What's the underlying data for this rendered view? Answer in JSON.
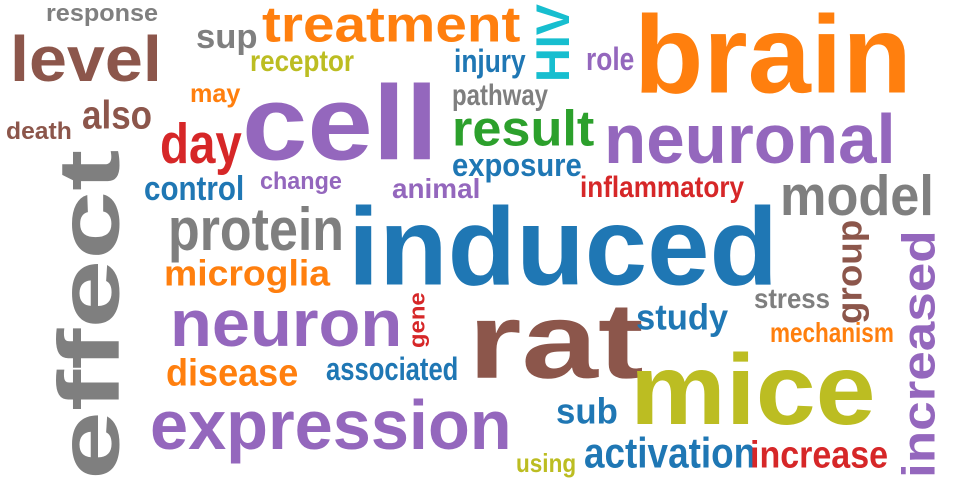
{
  "colors": {
    "gray": "#7f7f7f",
    "brown": "#8c564b",
    "orange": "#ff7f0e",
    "olive": "#bcbd22",
    "purple": "#9467bd",
    "blue": "#1f77b4",
    "green": "#2ca02c",
    "red": "#d62728",
    "cyan": "#17becf"
  },
  "words": [
    {
      "text": "response",
      "color": "gray",
      "rotated": false
    },
    {
      "text": "level",
      "color": "brown",
      "rotated": false
    },
    {
      "text": "sup",
      "color": "gray",
      "rotated": false
    },
    {
      "text": "treatment",
      "color": "orange",
      "rotated": false
    },
    {
      "text": "HIV",
      "color": "cyan",
      "rotated": true
    },
    {
      "text": "brain",
      "color": "orange",
      "rotated": false
    },
    {
      "text": "receptor",
      "color": "olive",
      "rotated": false
    },
    {
      "text": "injury",
      "color": "blue",
      "rotated": false
    },
    {
      "text": "role",
      "color": "purple",
      "rotated": false
    },
    {
      "text": "may",
      "color": "orange",
      "rotated": false
    },
    {
      "text": "cell",
      "color": "purple",
      "rotated": false
    },
    {
      "text": "pathway",
      "color": "gray",
      "rotated": false
    },
    {
      "text": "also",
      "color": "brown",
      "rotated": false
    },
    {
      "text": "death",
      "color": "brown",
      "rotated": false
    },
    {
      "text": "day",
      "color": "red",
      "rotated": false
    },
    {
      "text": "result",
      "color": "green",
      "rotated": false
    },
    {
      "text": "neuronal",
      "color": "purple",
      "rotated": false
    },
    {
      "text": "exposure",
      "color": "blue",
      "rotated": false
    },
    {
      "text": "effect",
      "color": "gray",
      "rotated": true
    },
    {
      "text": "control",
      "color": "blue",
      "rotated": false
    },
    {
      "text": "change",
      "color": "purple",
      "rotated": false
    },
    {
      "text": "animal",
      "color": "purple",
      "rotated": false
    },
    {
      "text": "inflammatory",
      "color": "red",
      "rotated": false
    },
    {
      "text": "model",
      "color": "gray",
      "rotated": false
    },
    {
      "text": "protein",
      "color": "gray",
      "rotated": false
    },
    {
      "text": "induced",
      "color": "blue",
      "rotated": false
    },
    {
      "text": "group",
      "color": "brown",
      "rotated": true
    },
    {
      "text": "increased",
      "color": "purple",
      "rotated": true
    },
    {
      "text": "microglia",
      "color": "orange",
      "rotated": false
    },
    {
      "text": "stress",
      "color": "gray",
      "rotated": false
    },
    {
      "text": "neuron",
      "color": "purple",
      "rotated": false
    },
    {
      "text": "gene",
      "color": "red",
      "rotated": true
    },
    {
      "text": "rat",
      "color": "brown",
      "rotated": false
    },
    {
      "text": "study",
      "color": "blue",
      "rotated": false
    },
    {
      "text": "mechanism",
      "color": "orange",
      "rotated": false
    },
    {
      "text": "disease",
      "color": "orange",
      "rotated": false
    },
    {
      "text": "associated",
      "color": "blue",
      "rotated": false
    },
    {
      "text": "mice",
      "color": "olive",
      "rotated": false
    },
    {
      "text": "expression",
      "color": "purple",
      "rotated": false
    },
    {
      "text": "sub",
      "color": "blue",
      "rotated": false
    },
    {
      "text": "activation",
      "color": "blue",
      "rotated": false
    },
    {
      "text": "increase",
      "color": "red",
      "rotated": false
    },
    {
      "text": "using",
      "color": "olive",
      "rotated": false
    }
  ]
}
